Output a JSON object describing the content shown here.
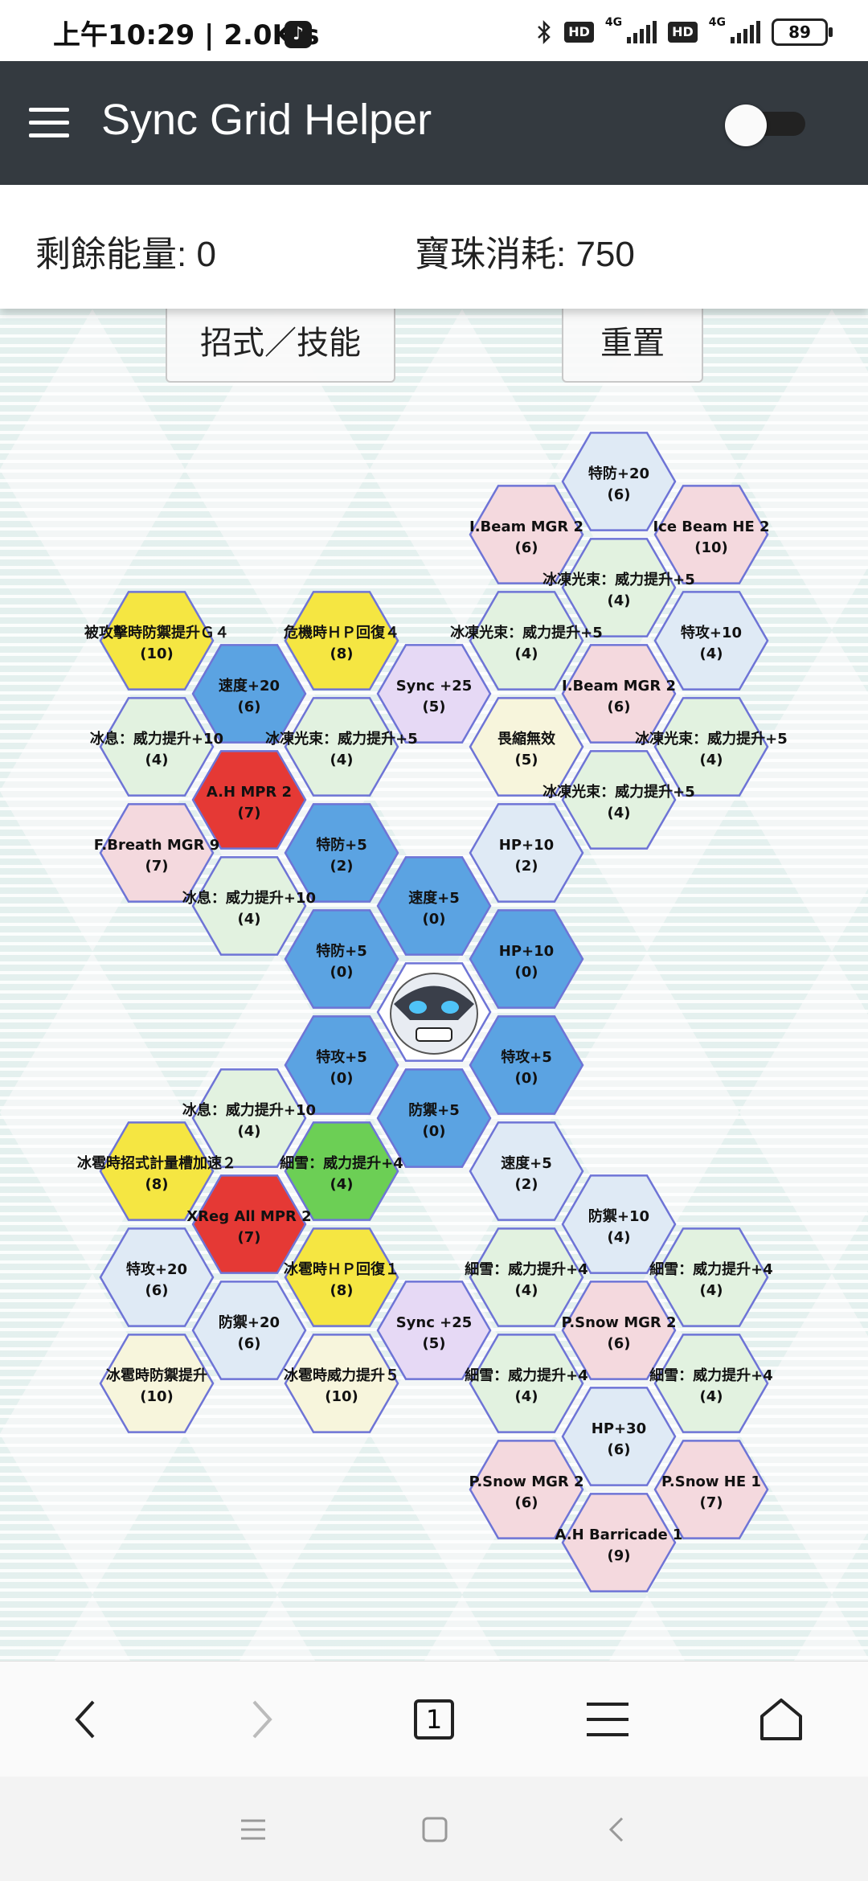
{
  "status_bar": {
    "time_speed": "上午10:29 | 2.0K/s",
    "hd1": "HD",
    "net1": "4G",
    "hd2": "HD",
    "net2": "4G",
    "battery": "89"
  },
  "app": {
    "title": "Sync Grid Helper",
    "toggle_on": false
  },
  "info": {
    "remaining_energy": "剩餘能量: 0",
    "orb_cost": "寶珠消耗: 750"
  },
  "buttons": {
    "moves_skills": "招式／技能",
    "reset": "重置"
  },
  "colors": {
    "appbar": "#343a40",
    "blue": "#5ba3e2",
    "red": "#e53935",
    "yellow": "#f5e642",
    "green": "#6ccf55",
    "purple_light": "#e6d9f5",
    "green_light": "#e2f2e0",
    "pink_light": "#f4d9de",
    "blue_light": "#dfeaf5",
    "yellow_light": "#f7f5dc",
    "hex_border": "#6e74d6"
  },
  "hex_grid": {
    "center": {
      "q": 0,
      "r": 0,
      "name": "glastrier-sync-pair-portrait"
    },
    "cells": [
      {
        "q": 2,
        "r": -10,
        "label": "特防+20",
        "cost": "(6)",
        "color": "blue_light"
      },
      {
        "q": 1,
        "r": -9,
        "label": "I.Beam MGR 2",
        "cost": "(6)",
        "color": "pink_light"
      },
      {
        "q": 3,
        "r": -9,
        "label": "Ice Beam HE 2",
        "cost": "(10)",
        "color": "pink_light"
      },
      {
        "q": 2,
        "r": -8,
        "label": "冰凍光束：威力提升+5",
        "cost": "(4)",
        "color": "green_light"
      },
      {
        "q": -3,
        "r": -7,
        "label": "被攻擊時防禦提升Ｇ４",
        "cost": "(10)",
        "color": "yellow"
      },
      {
        "q": -1,
        "r": -7,
        "label": "危機時ＨＰ回復４",
        "cost": "(8)",
        "color": "yellow"
      },
      {
        "q": 1,
        "r": -7,
        "label": "冰凍光束：威力提升+5",
        "cost": "(4)",
        "color": "green_light"
      },
      {
        "q": 3,
        "r": -7,
        "label": "特攻+10",
        "cost": "(4)",
        "color": "blue_light"
      },
      {
        "q": -2,
        "r": -6,
        "label": "速度+20",
        "cost": "(6)",
        "color": "blue"
      },
      {
        "q": 0,
        "r": -6,
        "label": "Sync +25",
        "cost": "(5)",
        "color": "purple_light"
      },
      {
        "q": 2,
        "r": -6,
        "label": "I.Beam MGR 2",
        "cost": "(6)",
        "color": "pink_light"
      },
      {
        "q": -3,
        "r": -5,
        "label": "冰息：威力提升+10",
        "cost": "(4)",
        "color": "green_light"
      },
      {
        "q": -1,
        "r": -5,
        "label": "冰凍光束：威力提升+5",
        "cost": "(4)",
        "color": "green_light"
      },
      {
        "q": 1,
        "r": -5,
        "label": "畏縮無效",
        "cost": "(5)",
        "color": "yellow_light"
      },
      {
        "q": 3,
        "r": -5,
        "label": "冰凍光束：威力提升+5",
        "cost": "(4)",
        "color": "green_light"
      },
      {
        "q": -2,
        "r": -4,
        "label": "A.H MPR 2",
        "cost": "(7)",
        "color": "red"
      },
      {
        "q": 2,
        "r": -4,
        "label": "冰凍光束：威力提升+5",
        "cost": "(4)",
        "color": "green_light"
      },
      {
        "q": -3,
        "r": -3,
        "label": "F.Breath MGR 9",
        "cost": "(7)",
        "color": "pink_light"
      },
      {
        "q": -1,
        "r": -3,
        "label": "特防+5",
        "cost": "(2)",
        "color": "blue"
      },
      {
        "q": 1,
        "r": -3,
        "label": "HP+10",
        "cost": "(2)",
        "color": "blue_light"
      },
      {
        "q": -2,
        "r": -2,
        "label": "冰息：威力提升+10",
        "cost": "(4)",
        "color": "green_light"
      },
      {
        "q": 0,
        "r": -2,
        "label": "速度+5",
        "cost": "(0)",
        "color": "blue"
      },
      {
        "q": -1,
        "r": -1,
        "label": "特防+5",
        "cost": "(0)",
        "color": "blue"
      },
      {
        "q": 1,
        "r": -1,
        "label": "HP+10",
        "cost": "(0)",
        "color": "blue"
      },
      {
        "q": -1,
        "r": 1,
        "label": "特攻+5",
        "cost": "(0)",
        "color": "blue"
      },
      {
        "q": 1,
        "r": 1,
        "label": "特攻+5",
        "cost": "(0)",
        "color": "blue"
      },
      {
        "q": -2,
        "r": 2,
        "label": "冰息：威力提升+10",
        "cost": "(4)",
        "color": "green_light"
      },
      {
        "q": 0,
        "r": 2,
        "label": "防禦+5",
        "cost": "(0)",
        "color": "blue"
      },
      {
        "q": -3,
        "r": 3,
        "label": "冰雹時招式計量槽加速２",
        "cost": "(8)",
        "color": "yellow"
      },
      {
        "q": -1,
        "r": 3,
        "label": "細雪：威力提升+4",
        "cost": "(4)",
        "color": "green"
      },
      {
        "q": 1,
        "r": 3,
        "label": "速度+5",
        "cost": "(2)",
        "color": "blue_light"
      },
      {
        "q": -2,
        "r": 4,
        "label": "XReg All MPR 2",
        "cost": "(7)",
        "color": "red"
      },
      {
        "q": 2,
        "r": 4,
        "label": "防禦+10",
        "cost": "(4)",
        "color": "blue_light"
      },
      {
        "q": -3,
        "r": 5,
        "label": "特攻+20",
        "cost": "(6)",
        "color": "blue_light"
      },
      {
        "q": -1,
        "r": 5,
        "label": "冰雹時ＨＰ回復１",
        "cost": "(8)",
        "color": "yellow"
      },
      {
        "q": 1,
        "r": 5,
        "label": "細雪：威力提升+4",
        "cost": "(4)",
        "color": "green_light"
      },
      {
        "q": 3,
        "r": 5,
        "label": "細雪：威力提升+4",
        "cost": "(4)",
        "color": "green_light"
      },
      {
        "q": -2,
        "r": 6,
        "label": "防禦+20",
        "cost": "(6)",
        "color": "blue_light"
      },
      {
        "q": 0,
        "r": 6,
        "label": "Sync +25",
        "cost": "(5)",
        "color": "purple_light"
      },
      {
        "q": 2,
        "r": 6,
        "label": "P.Snow MGR 2",
        "cost": "(6)",
        "color": "pink_light"
      },
      {
        "q": -3,
        "r": 7,
        "label": "冰雹時防禦提升",
        "cost": "(10)",
        "color": "yellow_light"
      },
      {
        "q": -1,
        "r": 7,
        "label": "冰雹時威力提升５",
        "cost": "(10)",
        "color": "yellow_light"
      },
      {
        "q": 1,
        "r": 7,
        "label": "細雪：威力提升+4",
        "cost": "(4)",
        "color": "green_light"
      },
      {
        "q": 3,
        "r": 7,
        "label": "細雪：威力提升+4",
        "cost": "(4)",
        "color": "green_light"
      },
      {
        "q": 2,
        "r": 8,
        "label": "HP+30",
        "cost": "(6)",
        "color": "blue_light"
      },
      {
        "q": 1,
        "r": 9,
        "label": "P.Snow MGR 2",
        "cost": "(6)",
        "color": "pink_light"
      },
      {
        "q": 3,
        "r": 9,
        "label": "P.Snow HE 1",
        "cost": "(7)",
        "color": "pink_light"
      },
      {
        "q": 2,
        "r": 10,
        "label": "A.H Barricade 1",
        "cost": "(9)",
        "color": "pink_light"
      }
    ]
  },
  "browser_nav": {
    "tab_count": "1",
    "icons": [
      "back-icon",
      "forward-icon",
      "tabs-icon",
      "menu-icon",
      "home-icon"
    ]
  },
  "system_nav": {
    "icons": [
      "recents-icon",
      "home-square-icon",
      "back-triangle-icon"
    ]
  }
}
